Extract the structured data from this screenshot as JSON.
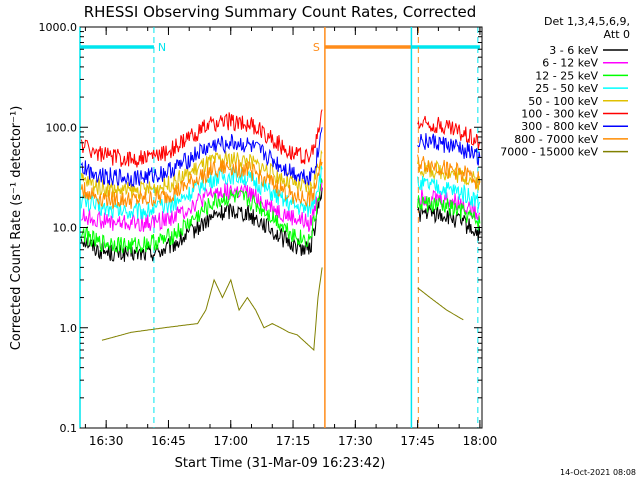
{
  "chart_data": {
    "type": "line",
    "title": "RHESSI Observing Summary Count Rates, Corrected",
    "xlabel": "Start Time (31-Mar-09 16:23:42)",
    "ylabel": "Corrected Count Rate (s⁻¹ detector⁻¹)",
    "yscale": "log",
    "ylim": [
      0.1,
      1000
    ],
    "xlim": [
      "16:23:42",
      "18:00:30"
    ],
    "y_ticks": [
      "0.1",
      "1.0",
      "10.0",
      "100.0",
      "1000.0"
    ],
    "x_ticks": [
      "16:30",
      "16:45",
      "17:00",
      "17:15",
      "17:30",
      "17:45",
      "18:00"
    ],
    "legend_position": "top-right",
    "legend_header": [
      "Det 1,3,4,5,6,9,",
      "Att 0"
    ],
    "footer_date": "14-Oct-2021 08:08",
    "flags": [
      {
        "label": "N",
        "color": "#00e5ee",
        "intervals": [
          [
            "16:23:42",
            "16:41:30"
          ],
          [
            "17:43:30",
            "18:00:00"
          ]
        ]
      },
      {
        "label": "S",
        "color": "#ff8c1a",
        "intervals": [
          [
            "17:22:40",
            "17:43:30"
          ]
        ]
      }
    ],
    "vertical_lines": [
      {
        "time": "16:23:42",
        "color": "#00e5ee",
        "style": "solid"
      },
      {
        "time": "16:41:30",
        "color": "#00e5ee",
        "style": "dashed"
      },
      {
        "time": "17:22:40",
        "color": "#ff8c1a",
        "style": "solid"
      },
      {
        "time": "17:43:30",
        "color": "#00e5ee",
        "style": "solid"
      },
      {
        "time": "17:45:10",
        "color": "#ff8c1a",
        "style": "dashed"
      },
      {
        "time": "17:59:30",
        "color": "#00e5ee",
        "style": "dashed"
      }
    ],
    "series": [
      {
        "name": "3 - 6 keV",
        "color": "#000000",
        "x": [
          "16:24",
          "16:28",
          "16:32",
          "16:36",
          "16:40",
          "16:44",
          "16:48",
          "16:52",
          "16:56",
          "17:00",
          "17:04",
          "17:08",
          "17:12",
          "17:16",
          "17:19",
          "17:20",
          "17:21",
          "17:22",
          "17:45",
          "17:48",
          "17:52",
          "17:56",
          "18:00"
        ],
        "y": [
          8,
          6,
          5.5,
          5.5,
          5.5,
          6,
          7.5,
          10,
          13,
          15,
          14,
          11,
          8,
          6.5,
          6,
          9,
          15,
          25,
          14,
          14,
          13,
          11,
          8.5
        ]
      },
      {
        "name": "6 - 12 keV",
        "color": "#ff00ff",
        "x": [
          "16:24",
          "16:28",
          "16:32",
          "16:36",
          "16:40",
          "16:44",
          "16:48",
          "16:52",
          "16:56",
          "17:00",
          "17:04",
          "17:08",
          "17:12",
          "17:16",
          "17:19",
          "17:20",
          "17:21",
          "17:22",
          "17:45",
          "17:48",
          "17:52",
          "17:56",
          "18:00"
        ],
        "y": [
          13,
          12,
          11,
          11,
          11,
          12,
          14,
          18,
          22,
          23,
          22,
          18,
          14,
          12,
          11,
          14,
          20,
          30,
          20,
          20,
          19,
          17,
          14
        ]
      },
      {
        "name": "12 - 25 keV",
        "color": "#00ff00",
        "x": [
          "16:24",
          "16:28",
          "16:32",
          "16:36",
          "16:40",
          "16:44",
          "16:48",
          "16:52",
          "16:56",
          "17:00",
          "17:04",
          "17:08",
          "17:12",
          "17:16",
          "17:19",
          "17:20",
          "17:21",
          "17:22",
          "17:45",
          "17:48",
          "17:52",
          "17:56",
          "18:00"
        ],
        "y": [
          9,
          7,
          7,
          6.5,
          7,
          7.5,
          9.5,
          13,
          18,
          20,
          19,
          15,
          11,
          8,
          7.5,
          11,
          18,
          28,
          18,
          17,
          16,
          14,
          11
        ]
      },
      {
        "name": "25 - 50 keV",
        "color": "#00ffff",
        "x": [
          "16:24",
          "16:28",
          "16:32",
          "16:36",
          "16:40",
          "16:44",
          "16:48",
          "16:52",
          "16:56",
          "17:00",
          "17:04",
          "17:08",
          "17:12",
          "17:16",
          "17:19",
          "17:20",
          "17:21",
          "17:22",
          "17:45",
          "17:48",
          "17:52",
          "17:56",
          "18:00"
        ],
        "y": [
          19,
          16,
          15,
          14.5,
          15,
          16,
          19,
          25,
          31,
          33,
          31,
          25,
          19,
          16,
          15,
          19,
          27,
          38,
          27,
          26,
          24,
          22,
          18
        ]
      },
      {
        "name": "50 - 100 keV",
        "color": "#e0c000",
        "x": [
          "16:24",
          "16:28",
          "16:32",
          "16:36",
          "16:40",
          "16:44",
          "16:48",
          "16:52",
          "16:56",
          "17:00",
          "17:04",
          "17:08",
          "17:12",
          "17:16",
          "17:19",
          "17:20",
          "17:21",
          "17:22",
          "17:45",
          "17:48",
          "17:52",
          "17:56",
          "18:00"
        ],
        "y": [
          30,
          26,
          24,
          23,
          24,
          26,
          31,
          39,
          46,
          48,
          46,
          39,
          31,
          26,
          24,
          29,
          40,
          55,
          40,
          38,
          36,
          33,
          28
        ]
      },
      {
        "name": "100 - 300 keV",
        "color": "#ff0000",
        "x": [
          "16:24",
          "16:28",
          "16:32",
          "16:36",
          "16:40",
          "16:44",
          "16:48",
          "16:52",
          "16:56",
          "17:00",
          "17:04",
          "17:08",
          "17:12",
          "17:16",
          "17:19",
          "17:20",
          "17:21",
          "17:22",
          "17:45",
          "17:48",
          "17:52",
          "17:56",
          "18:00"
        ],
        "y": [
          68,
          55,
          50,
          48,
          50,
          55,
          68,
          90,
          110,
          115,
          108,
          88,
          66,
          53,
          50,
          60,
          85,
          150,
          110,
          108,
          100,
          88,
          72
        ]
      },
      {
        "name": "300 - 800 keV",
        "color": "#0000ff",
        "x": [
          "16:24",
          "16:28",
          "16:32",
          "16:36",
          "16:40",
          "16:44",
          "16:48",
          "16:52",
          "16:56",
          "17:00",
          "17:04",
          "17:08",
          "17:12",
          "17:16",
          "17:19",
          "17:20",
          "17:21",
          "17:22",
          "17:45",
          "17:48",
          "17:52",
          "17:56",
          "18:00"
        ],
        "y": [
          40,
          34,
          32,
          31,
          32,
          35,
          42,
          55,
          66,
          70,
          66,
          54,
          41,
          34,
          32,
          38,
          55,
          100,
          75,
          72,
          66,
          60,
          50
        ]
      },
      {
        "name": "800 - 7000 keV",
        "color": "#ff8c00",
        "x": [
          "16:24",
          "16:28",
          "16:32",
          "16:36",
          "16:40",
          "16:44",
          "16:48",
          "16:52",
          "16:56",
          "17:00",
          "17:04",
          "17:08",
          "17:12",
          "17:16",
          "17:19",
          "17:20",
          "17:21",
          "17:22",
          "17:45",
          "17:48",
          "17:52",
          "17:56",
          "18:00"
        ],
        "y": [
          24,
          20,
          19,
          18.5,
          19,
          20,
          24,
          31,
          38,
          40,
          38,
          31,
          24,
          20,
          19,
          23,
          33,
          45,
          44,
          42,
          38,
          35,
          29
        ]
      },
      {
        "name": "7000 - 15000 keV",
        "color": "#808000",
        "x": [
          "16:29",
          "16:36",
          "16:44",
          "16:48",
          "16:52",
          "16:54",
          "16:56",
          "16:58",
          "17:00",
          "17:02",
          "17:04",
          "17:06",
          "17:08",
          "17:10",
          "17:12",
          "17:14",
          "17:16",
          "17:20",
          "17:21",
          "17:22",
          "17:45",
          "17:48",
          "17:52",
          "17:56"
        ],
        "y": [
          0.75,
          0.9,
          1.0,
          1.05,
          1.1,
          1.5,
          3.0,
          2.0,
          3.0,
          1.5,
          2.0,
          1.5,
          1.0,
          1.1,
          1.0,
          0.9,
          0.85,
          0.6,
          2.0,
          4.0,
          2.5,
          2.0,
          1.5,
          1.2
        ]
      }
    ]
  }
}
